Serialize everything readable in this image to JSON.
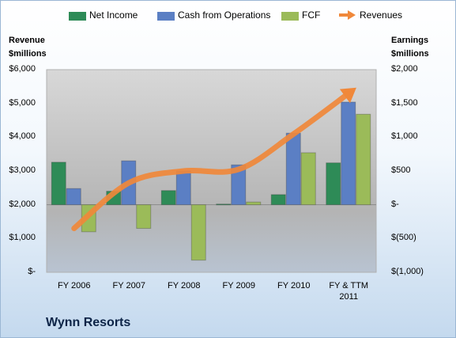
{
  "chart_data": {
    "type": "bar",
    "title": "Wynn Resorts",
    "categories": [
      "FY 2006",
      "FY 2007",
      "FY 2008",
      "FY 2009",
      "FY 2010",
      "FY & TTM 2011"
    ],
    "category_lines": [
      [
        "FY 2006"
      ],
      [
        "FY 2007"
      ],
      [
        "FY 2008"
      ],
      [
        "FY 2009"
      ],
      [
        "FY 2010"
      ],
      [
        "FY & TTM",
        "2011"
      ]
    ],
    "left_axis": {
      "label_line1": "Revenue",
      "label_line2": "$millions",
      "ylim": [
        0,
        6000
      ],
      "ticks": [
        0,
        1000,
        2000,
        3000,
        4000,
        5000,
        6000
      ],
      "tick_labels": [
        "$-",
        "$1,000",
        "$2,000",
        "$3,000",
        "$4,000",
        "$5,000",
        "$6,000"
      ]
    },
    "right_axis": {
      "label_line1": "Earnings",
      "label_line2": "$millions",
      "ylim": [
        -1000,
        2000
      ],
      "ticks": [
        -1000,
        -500,
        0,
        500,
        1000,
        1500,
        2000
      ],
      "tick_labels": [
        "$(1,000)",
        "$(500)",
        "$-",
        "$500",
        "$1,000",
        "$1,500",
        "$2,000"
      ]
    },
    "series": [
      {
        "name": "Net Income",
        "axis": "right",
        "kind": "bar",
        "color": "#2e8b57",
        "values": [
          630,
          200,
          210,
          10,
          150,
          620
        ]
      },
      {
        "name": "Cash from Operations",
        "axis": "right",
        "kind": "bar",
        "color": "#5b7fc4",
        "values": [
          240,
          650,
          500,
          590,
          1060,
          1520
        ]
      },
      {
        "name": "FCF",
        "axis": "right",
        "kind": "bar",
        "color": "#9bbb59",
        "values": [
          -400,
          -350,
          -820,
          40,
          770,
          1340
        ]
      },
      {
        "name": "Revenues",
        "axis": "left",
        "kind": "line",
        "color": "#f0883a",
        "values": [
          1300,
          2650,
          3000,
          3050,
          4100,
          5300
        ]
      }
    ],
    "grid": false,
    "legend_position": "top"
  }
}
